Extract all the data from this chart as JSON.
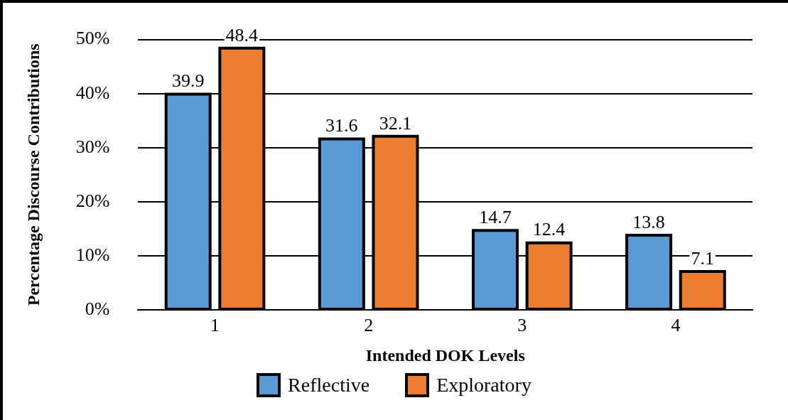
{
  "chart_data": {
    "type": "bar",
    "xlabel": "Intended DOK Levels",
    "ylabel": "Percentage Discourse Contributions",
    "categories": [
      "1",
      "2",
      "3",
      "4"
    ],
    "series": [
      {
        "name": "Reflective",
        "color": "#5b9bd5",
        "values": [
          39.9,
          31.6,
          14.7,
          13.8
        ]
      },
      {
        "name": "Exploratory",
        "color": "#ed7d31",
        "values": [
          48.4,
          32.1,
          12.4,
          7.1
        ]
      }
    ],
    "ylim": [
      0,
      50
    ],
    "yticks": [
      {
        "value": 0,
        "label": "0%"
      },
      {
        "value": 10,
        "label": "10%"
      },
      {
        "value": 20,
        "label": "20%"
      },
      {
        "value": 30,
        "label": "30%"
      },
      {
        "value": 40,
        "label": "40%"
      },
      {
        "value": 50,
        "label": "50%"
      }
    ],
    "grid": "y",
    "legend": "bottom",
    "data_labels": true
  }
}
